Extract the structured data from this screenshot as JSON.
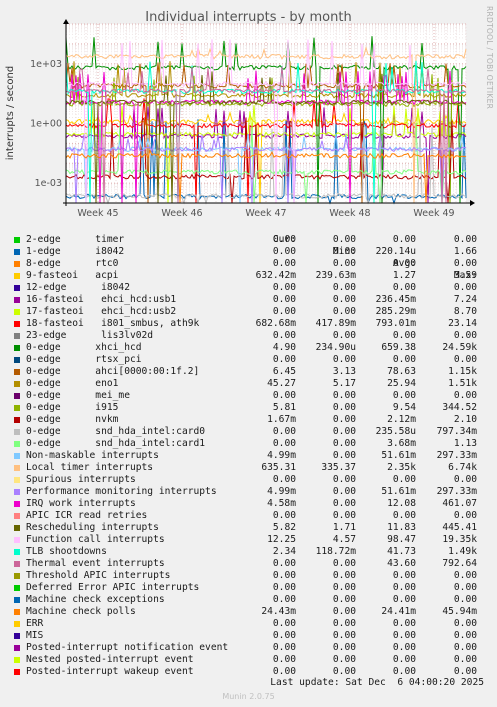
{
  "side_credit": "RRDTOOL / TOBI OETIKER",
  "footer": {
    "last_update": "Last update: Sat Dec  6 04:00:20 2025",
    "munin_version": "Munin 2.0.75"
  },
  "chart_data": {
    "type": "line",
    "title": "Individual interrupts - by month",
    "ylabel": "interrupts / second",
    "y_scale": "log",
    "ylim": [
      0.0001,
      100000
    ],
    "y_ticks": [
      0.001,
      1,
      1000
    ],
    "y_tick_labels": [
      "1e-03",
      "1e+00",
      "1e+03"
    ],
    "x_ticks": [
      "Week 45",
      "Week 46",
      "Week 47",
      "Week 48",
      "Week 49"
    ],
    "grid": true,
    "columns": [
      "Cur:",
      "Min:",
      "Avg:",
      "Max:"
    ],
    "series": [
      {
        "name": "2-edge      timer",
        "color": "#00cc00",
        "values": [
          "0.00",
          "0.00",
          "0.00",
          "0.00"
        ]
      },
      {
        "name": "1-edge      i8042",
        "color": "#0066b3",
        "values": [
          "0.00",
          "0.00",
          "220.14u",
          "1.66"
        ]
      },
      {
        "name": "8-edge      rtc0",
        "color": "#ff8000",
        "values": [
          "0.00",
          "0.00",
          "0.00",
          "0.00"
        ]
      },
      {
        "name": "9-fasteoi   acpi",
        "color": "#ffcc00",
        "values": [
          "632.42m",
          "239.63m",
          "1.27",
          "3.59"
        ]
      },
      {
        "name": "12-edge      i8042",
        "color": "#330099",
        "values": [
          "0.00",
          "0.00",
          "0.00",
          "0.00"
        ]
      },
      {
        "name": "16-fasteoi   ehci_hcd:usb1",
        "color": "#990099",
        "values": [
          "0.00",
          "0.00",
          "236.45m",
          "7.24"
        ]
      },
      {
        "name": "17-fasteoi   ehci_hcd:usb2",
        "color": "#ccff00",
        "values": [
          "0.00",
          "0.00",
          "285.29m",
          "8.70"
        ]
      },
      {
        "name": "18-fasteoi   i801_smbus, ath9k",
        "color": "#ff0000",
        "values": [
          "682.68m",
          "417.89m",
          "793.01m",
          "23.14"
        ]
      },
      {
        "name": "23-edge      lis3lv02d",
        "color": "#808080",
        "values": [
          "0.00",
          "0.00",
          "0.00",
          "0.00"
        ]
      },
      {
        "name": "0-edge      xhci_hcd",
        "color": "#008f00",
        "values": [
          "4.90",
          "234.90u",
          "659.38",
          "24.59k"
        ]
      },
      {
        "name": "0-edge      rtsx_pci",
        "color": "#00487d",
        "values": [
          "0.00",
          "0.00",
          "0.00",
          "0.00"
        ]
      },
      {
        "name": "0-edge      ahci[0000:00:1f.2]",
        "color": "#b35a00",
        "values": [
          "6.45",
          "3.13",
          "78.63",
          "1.15k"
        ]
      },
      {
        "name": "0-edge      eno1",
        "color": "#b38f00",
        "values": [
          "45.27",
          "5.17",
          "25.94",
          "1.51k"
        ]
      },
      {
        "name": "0-edge      mei_me",
        "color": "#6b006b",
        "values": [
          "0.00",
          "0.00",
          "0.00",
          "0.00"
        ]
      },
      {
        "name": "0-edge      i915",
        "color": "#8fb300",
        "values": [
          "5.81",
          "0.00",
          "9.54",
          "344.52"
        ]
      },
      {
        "name": "0-edge      nvkm",
        "color": "#b30000",
        "values": [
          "1.67m",
          "0.00",
          "2.12m",
          "2.10"
        ]
      },
      {
        "name": "0-edge      snd_hda_intel:card0",
        "color": "#bebebe",
        "values": [
          "0.00",
          "0.00",
          "235.58u",
          "797.34m"
        ]
      },
      {
        "name": "0-edge      snd_hda_intel:card1",
        "color": "#80ff80",
        "values": [
          "0.00",
          "0.00",
          "3.68m",
          "1.13"
        ]
      },
      {
        "name": "Non-maskable interrupts",
        "color": "#80c9ff",
        "values": [
          "4.99m",
          "0.00",
          "51.61m",
          "297.33m"
        ]
      },
      {
        "name": "Local timer interrupts",
        "color": "#ffc080",
        "values": [
          "635.31",
          "335.37",
          "2.35k",
          "6.74k"
        ]
      },
      {
        "name": "Spurious interrupts",
        "color": "#ffe680",
        "values": [
          "0.00",
          "0.00",
          "0.00",
          "0.00"
        ]
      },
      {
        "name": "Performance monitoring interrupts",
        "color": "#aa80ff",
        "values": [
          "4.99m",
          "0.00",
          "51.61m",
          "297.33m"
        ]
      },
      {
        "name": "IRQ work interrupts",
        "color": "#ee00cc",
        "values": [
          "4.58m",
          "0.00",
          "12.08",
          "461.07"
        ]
      },
      {
        "name": "APIC ICR read retries",
        "color": "#ff8080",
        "values": [
          "0.00",
          "0.00",
          "0.00",
          "0.00"
        ]
      },
      {
        "name": "Rescheduling interrupts",
        "color": "#666600",
        "values": [
          "5.82",
          "1.71",
          "11.83",
          "445.41"
        ]
      },
      {
        "name": "Function call interrupts",
        "color": "#ffbfff",
        "values": [
          "12.25",
          "4.57",
          "98.47",
          "19.35k"
        ]
      },
      {
        "name": "TLB shootdowns",
        "color": "#00ffcc",
        "values": [
          "2.34",
          "118.72m",
          "41.73",
          "1.49k"
        ]
      },
      {
        "name": "Thermal event interrupts",
        "color": "#cc6699",
        "values": [
          "0.00",
          "0.00",
          "43.60",
          "792.64"
        ]
      },
      {
        "name": "Threshold APIC interrupts",
        "color": "#999900",
        "values": [
          "0.00",
          "0.00",
          "0.00",
          "0.00"
        ]
      },
      {
        "name": "Deferred Error APIC interrupts",
        "color": "#00cc00",
        "values": [
          "0.00",
          "0.00",
          "0.00",
          "0.00"
        ]
      },
      {
        "name": "Machine check exceptions",
        "color": "#0066b3",
        "values": [
          "0.00",
          "0.00",
          "0.00",
          "0.00"
        ]
      },
      {
        "name": "Machine check polls",
        "color": "#ff8000",
        "values": [
          "24.43m",
          "0.00",
          "24.41m",
          "45.94m"
        ]
      },
      {
        "name": "ERR",
        "color": "#ffcc00",
        "values": [
          "0.00",
          "0.00",
          "0.00",
          "0.00"
        ]
      },
      {
        "name": "MIS",
        "color": "#330099",
        "values": [
          "0.00",
          "0.00",
          "0.00",
          "0.00"
        ]
      },
      {
        "name": "Posted-interrupt notification event",
        "color": "#990099",
        "values": [
          "0.00",
          "0.00",
          "0.00",
          "0.00"
        ]
      },
      {
        "name": "Nested posted-interrupt event",
        "color": "#ccff00",
        "values": [
          "0.00",
          "0.00",
          "0.00",
          "0.00"
        ]
      },
      {
        "name": "Posted-interrupt wakeup event",
        "color": "#ff0000",
        "values": [
          "0.00",
          "0.00",
          "0.00",
          "0.00"
        ]
      }
    ]
  }
}
